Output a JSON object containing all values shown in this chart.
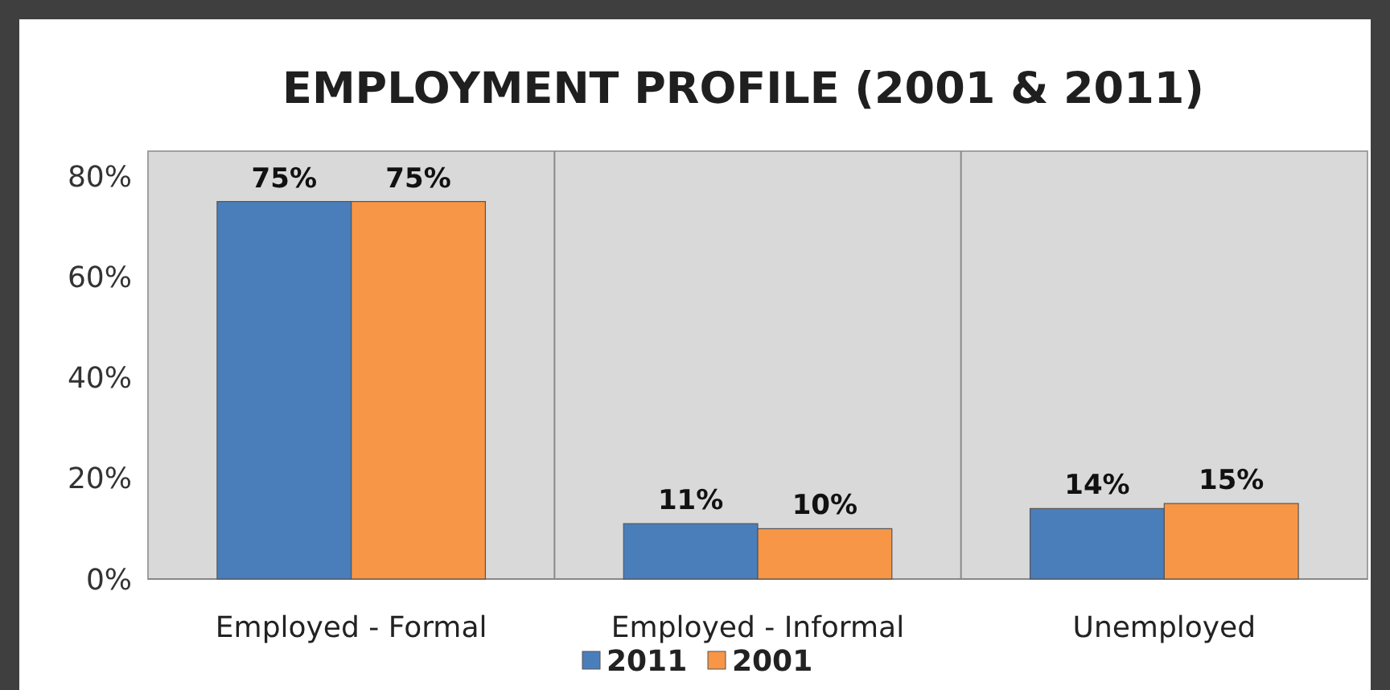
{
  "chart_data": {
    "type": "bar",
    "title": "EMPLOYMENT PROFILE (2001 & 2011)",
    "categories": [
      "Employed - Formal",
      "Employed - Informal",
      "Unemployed"
    ],
    "series": [
      {
        "name": "2011",
        "color": "#4a7ebb",
        "values": [
          75,
          11,
          14
        ]
      },
      {
        "name": "2001",
        "color": "#f79646",
        "values": [
          75,
          10,
          15
        ]
      }
    ],
    "ylim": [
      0,
      85
    ],
    "yticks": [
      {
        "value": 0,
        "label": "0%"
      },
      {
        "value": 20,
        "label": "20%"
      },
      {
        "value": 40,
        "label": "40%"
      },
      {
        "value": 60,
        "label": "60%"
      },
      {
        "value": 80,
        "label": "80%"
      }
    ],
    "value_labels": [
      [
        "75%",
        "11%",
        "14%"
      ],
      [
        "75%",
        "10%",
        "15%"
      ]
    ],
    "grid": "x",
    "legend": "bottom"
  }
}
